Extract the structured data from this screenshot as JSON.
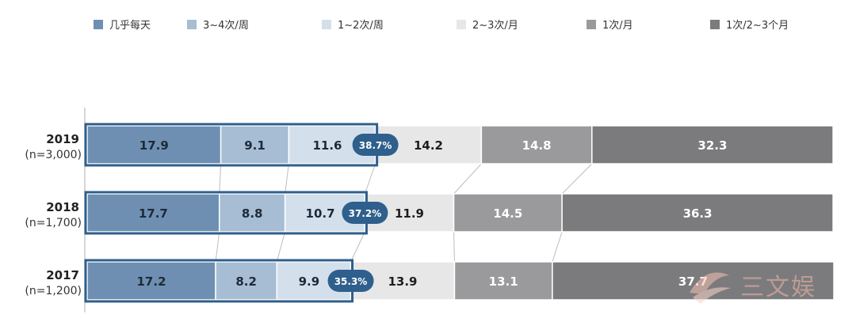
{
  "chart_data": {
    "type": "bar",
    "orientation": "horizontal",
    "stacked": true,
    "percent_stacked": true,
    "legend_position": "top",
    "grid": false,
    "xlim": [
      0,
      100
    ],
    "title": "",
    "xlabel": "",
    "ylabel": "",
    "categories": [
      {
        "year": "2019",
        "n": "(n=3,000)"
      },
      {
        "year": "2018",
        "n": "(n=1,700)"
      },
      {
        "year": "2017",
        "n": "(n=1,200)"
      }
    ],
    "series": [
      {
        "name": "几乎每天",
        "color": "#6e8fb1",
        "label_color": "#1e2a38",
        "values": [
          17.9,
          17.7,
          17.2
        ]
      },
      {
        "name": "3~4次/周",
        "color": "#a6bdd4",
        "label_color": "#1e2a38",
        "values": [
          9.1,
          8.8,
          8.2
        ]
      },
      {
        "name": "1~2次/周",
        "color": "#d3e0ec",
        "label_color": "#1e2a38",
        "values": [
          11.6,
          10.7,
          9.9
        ]
      },
      {
        "name": "2~3次/月",
        "color": "#e7e7e8",
        "label_color": "#1e1e1e",
        "values": [
          14.2,
          11.9,
          13.9
        ]
      },
      {
        "name": "1次/月",
        "color": "#9a9a9c",
        "label_color": "#ffffff",
        "values": [
          14.8,
          14.5,
          13.1
        ]
      },
      {
        "name": "1次/2~3个月",
        "color": "#7b7b7e",
        "label_color": "#ffffff",
        "values": [
          32.3,
          36.3,
          37.7
        ]
      }
    ],
    "annotations": {
      "weekly_total_labels": [
        "38.7%",
        "37.2%",
        "35.3%"
      ],
      "badge_color": "#2f5f8c",
      "highlight_border_color": "#2f5f8c"
    }
  },
  "watermark": {
    "text": "三文娱",
    "accent_color": "#f4b8a4"
  }
}
